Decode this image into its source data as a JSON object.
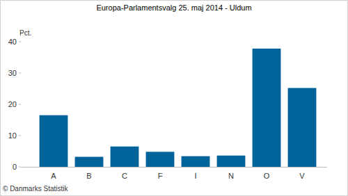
{
  "chart_data": {
    "type": "bar",
    "title": "Europa-Parlamentsvalg 25. maj 2014 - Uldum",
    "ylabel": "Pct.",
    "source": "© Danmarks Statistik",
    "categories": [
      "A",
      "B",
      "C",
      "F",
      "I",
      "N",
      "O",
      "V"
    ],
    "values": [
      16.5,
      3.2,
      6.5,
      4.8,
      3.4,
      3.6,
      37.8,
      25.2
    ],
    "color": "#00639a",
    "ylim": [
      0,
      40
    ],
    "yticks": [
      0,
      10,
      20,
      30,
      40
    ],
    "grid": false
  }
}
